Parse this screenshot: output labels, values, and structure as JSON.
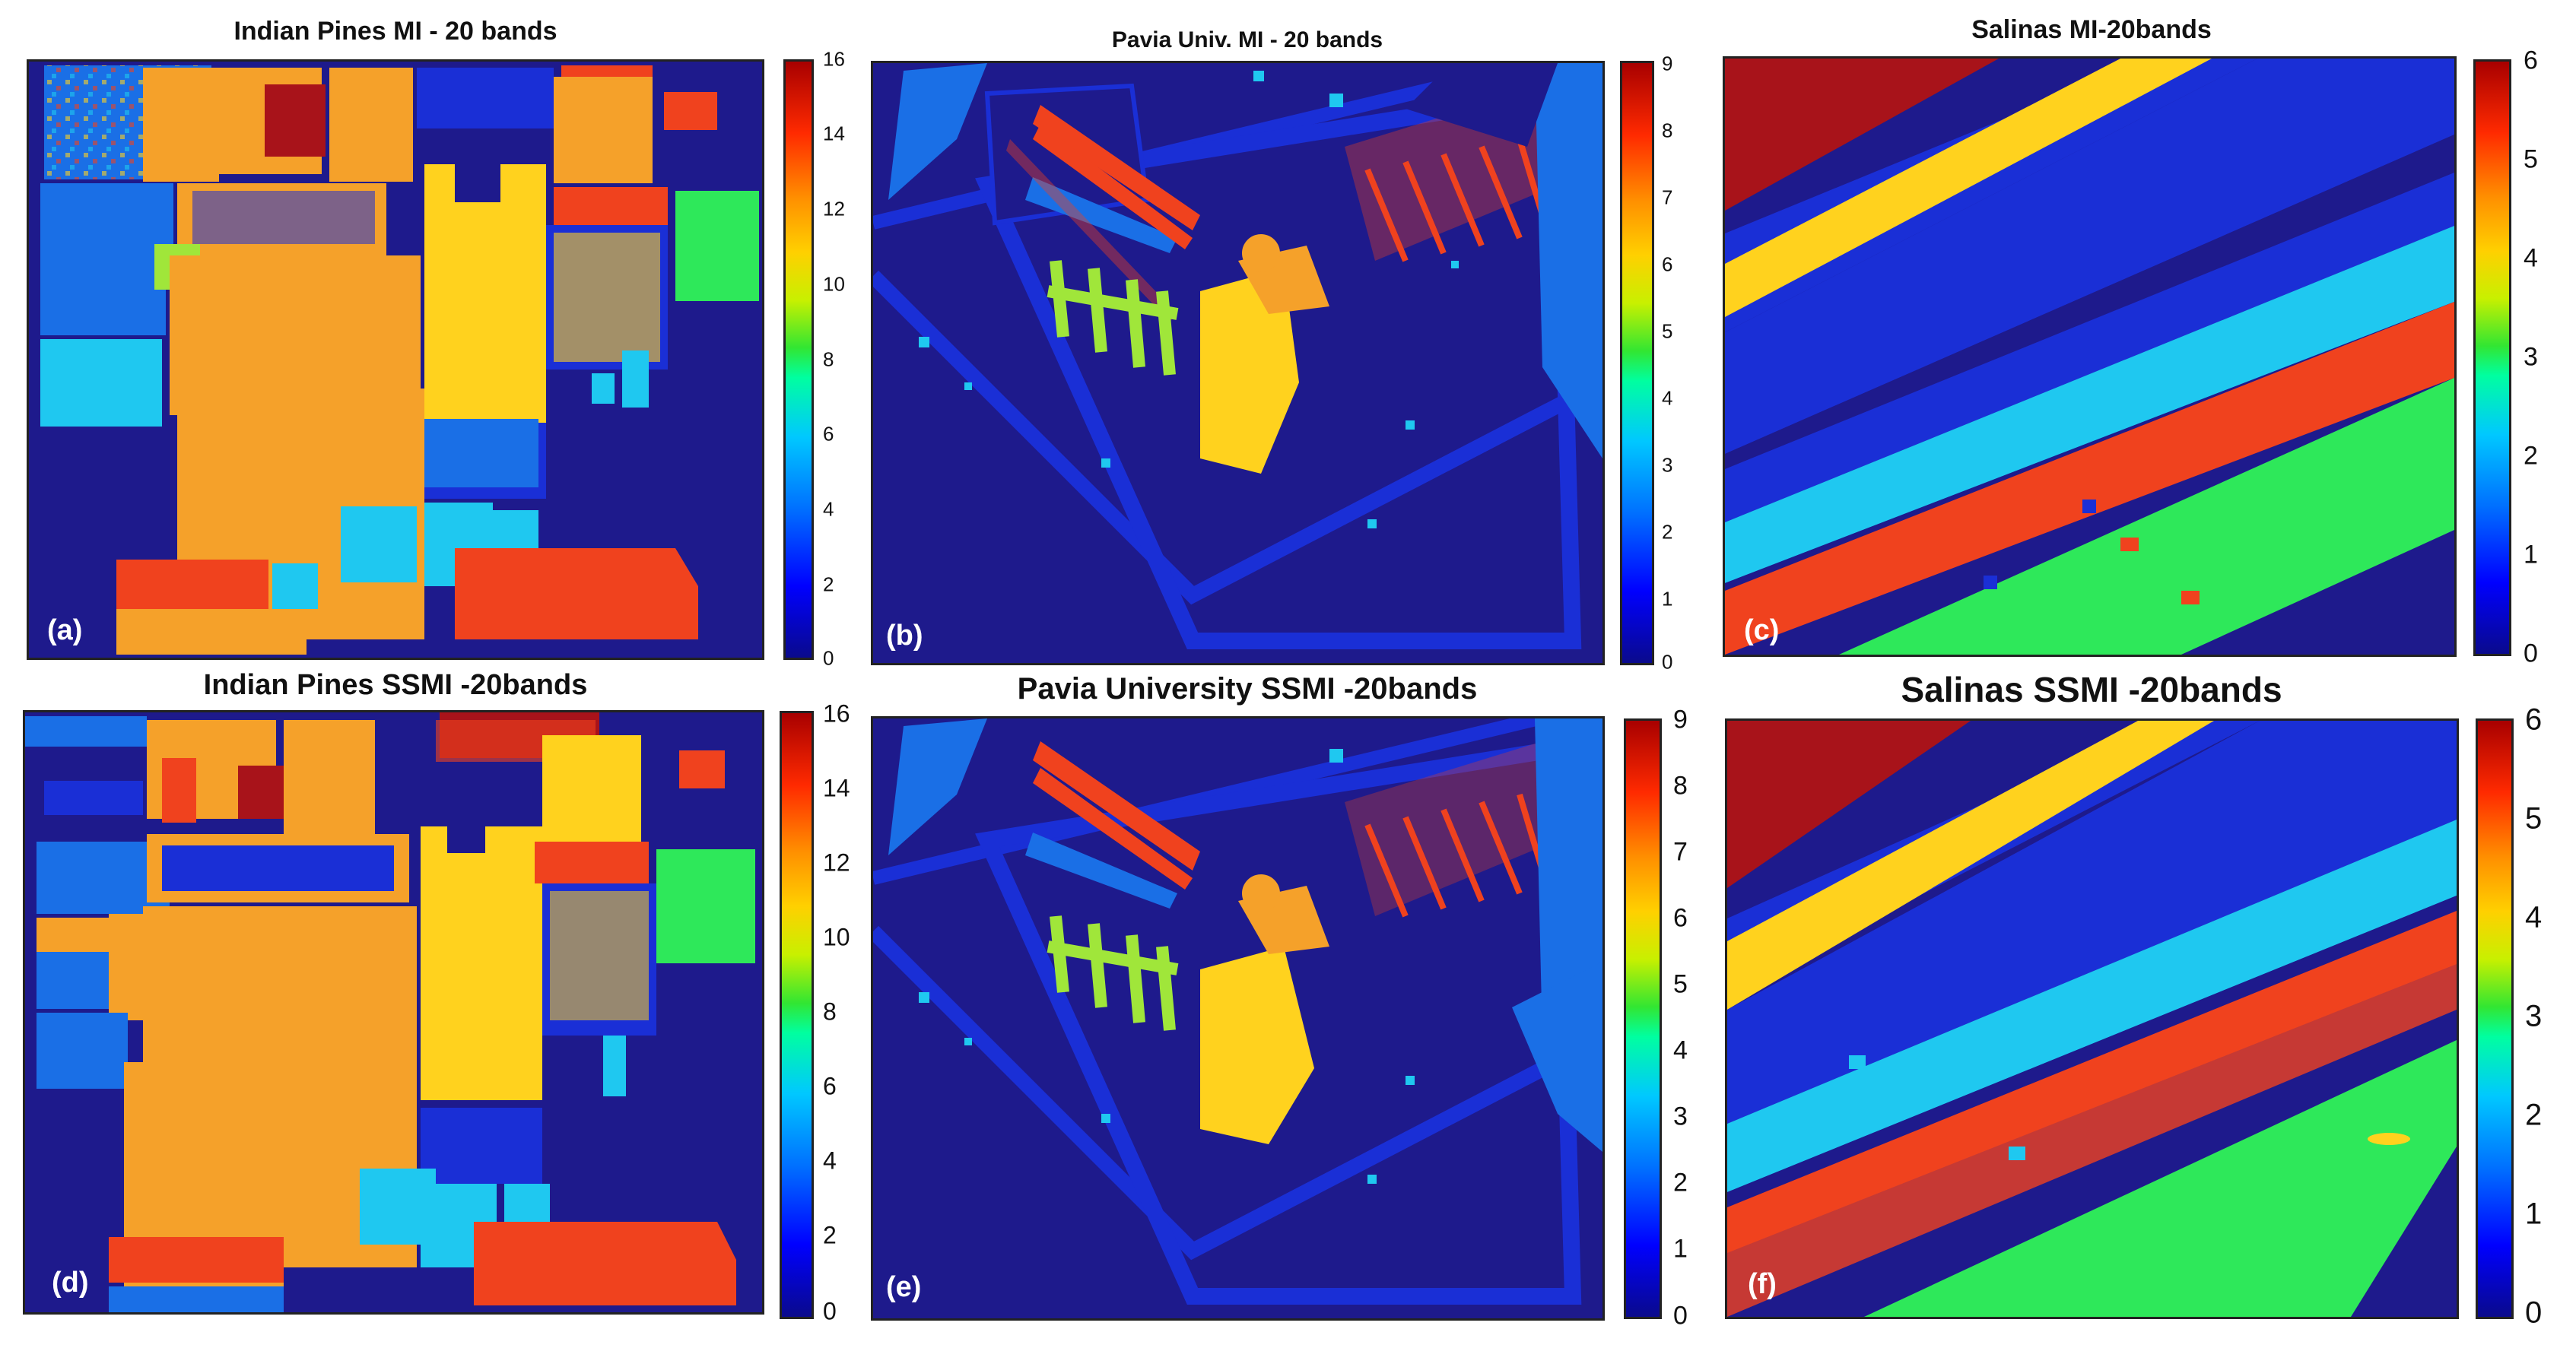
{
  "colors": {
    "background": "#1e1a8c",
    "class_palette": [
      "#1e1a8c",
      "#1a2fd6",
      "#1a6fe6",
      "#1fc8f0",
      "#2ee85a",
      "#a0e63a",
      "#ffd21e",
      "#f5a12a",
      "#f0421e",
      "#a8131a"
    ]
  },
  "panels": [
    {
      "title": "Indian Pines MI - 20 bands",
      "label": "(a)",
      "scene": "indian-pines",
      "ticks": [
        "16",
        "14",
        "12",
        "10",
        "8",
        "6",
        "4",
        "2",
        "0"
      ]
    },
    {
      "title": "Pavia Univ. MI - 20 bands",
      "label": "(b)",
      "scene": "pavia",
      "ticks": [
        "9",
        "8",
        "7",
        "6",
        "5",
        "4",
        "3",
        "2",
        "1",
        "0"
      ]
    },
    {
      "title": "Salinas MI-20bands",
      "label": "(c)",
      "scene": "salinas",
      "ticks": [
        "6",
        "5",
        "4",
        "3",
        "2",
        "1",
        "0"
      ]
    },
    {
      "title": "Indian Pines SSMI -20bands",
      "label": "(d)",
      "scene": "indian-pines",
      "ticks": [
        "16",
        "14",
        "12",
        "10",
        "8",
        "6",
        "4",
        "2",
        "0"
      ]
    },
    {
      "title": "Pavia University SSMI -20bands",
      "label": "(e)",
      "scene": "pavia",
      "ticks": [
        "9",
        "8",
        "7",
        "6",
        "5",
        "4",
        "3",
        "2",
        "1",
        "0"
      ]
    },
    {
      "title": "Salinas SSMI -20bands",
      "label": "(f)",
      "scene": "salinas",
      "ticks": [
        "6",
        "5",
        "4",
        "3",
        "2",
        "1",
        "0"
      ]
    }
  ]
}
